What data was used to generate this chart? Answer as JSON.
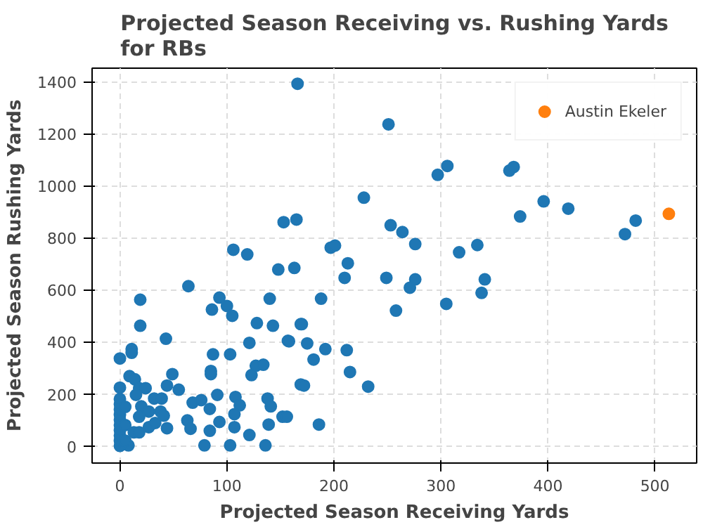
{
  "chart_data": {
    "type": "scatter",
    "title": "Projected Season Receiving vs. Rushing Yards for RBs",
    "xlabel": "Projected Season Receiving Yards",
    "ylabel": "Projected Season Rushing Yards",
    "xlim": [
      -26,
      539
    ],
    "ylim": [
      -66,
      1452
    ],
    "xticks": [
      0,
      100,
      200,
      300,
      400,
      500
    ],
    "yticks": [
      0,
      200,
      400,
      600,
      800,
      1000,
      1200,
      1400
    ],
    "grid": true,
    "legend": "top right",
    "marker": "circle",
    "series": [
      {
        "color": "#1f77b4",
        "x": [
          166,
          153,
          165,
          106,
          119,
          148,
          163,
          64,
          19,
          19,
          93,
          86,
          100,
          105,
          140,
          128,
          143,
          169,
          43,
          121,
          157,
          11,
          0,
          11,
          87,
          103,
          85,
          85,
          9,
          14,
          49,
          44,
          55,
          0,
          127,
          134,
          123,
          18,
          24,
          15,
          32,
          39,
          68,
          76,
          91,
          108,
          112,
          107,
          84,
          93,
          138,
          141,
          152,
          139,
          20,
          18,
          27,
          38,
          41,
          63,
          66,
          27,
          33,
          44,
          84,
          107,
          121,
          79,
          103,
          136,
          8,
          0,
          0,
          0,
          0,
          0,
          0,
          0,
          0,
          0,
          0,
          5,
          5,
          5,
          13,
          18,
          169,
          251,
          297,
          306,
          364,
          368,
          228,
          253,
          264,
          276,
          197,
          201,
          213,
          210,
          249,
          276,
          271,
          317,
          334,
          341,
          338,
          188,
          258,
          305,
          170,
          158,
          175,
          192,
          212,
          181,
          215,
          232,
          172,
          156,
          186,
          374,
          396,
          419,
          472,
          482
        ],
        "values": [
          1392,
          860,
          870,
          754,
          736,
          678,
          684,
          614,
          562,
          462,
          570,
          524,
          538,
          500,
          566,
          472,
          462,
          468,
          412,
          396,
          404,
          372,
          336,
          358,
          352,
          352,
          288,
          276,
          268,
          256,
          276,
          232,
          216,
          224,
          308,
          312,
          272,
          222,
          222,
          196,
          182,
          182,
          166,
          176,
          196,
          188,
          156,
          122,
          142,
          92,
          182,
          152,
          112,
          82,
          152,
          112,
          132,
          132,
          116,
          98,
          66,
          72,
          88,
          68,
          58,
          72,
          42,
          2,
          2,
          2,
          2,
          0,
          20,
          40,
          60,
          80,
          100,
          120,
          140,
          160,
          180,
          20,
          80,
          150,
          52,
          52,
          236,
          1236,
          1042,
          1076,
          1058,
          1072,
          954,
          848,
          822,
          776,
          762,
          770,
          702,
          646,
          646,
          640,
          608,
          744,
          772,
          640,
          588,
          566,
          520,
          546,
          468,
          402,
          394,
          372,
          368,
          332,
          284,
          228,
          232,
          112,
          82,
          882,
          940,
          912,
          814,
          866
        ]
      },
      {
        "name": "Austin Ekeler",
        "color": "#ff7f0e",
        "x": [
          513
        ],
        "values": [
          892
        ]
      }
    ]
  }
}
